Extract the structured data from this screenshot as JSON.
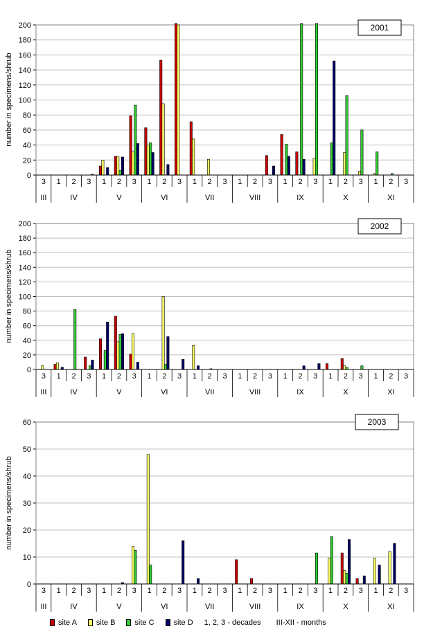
{
  "chart_data": [
    {
      "type": "bar",
      "title": "2001",
      "ylabel": "number in specimens/shrub",
      "ylim": [
        0,
        200
      ],
      "yticks": [
        0,
        20,
        40,
        60,
        80,
        100,
        120,
        140,
        160,
        180,
        200
      ],
      "decade_labels": [
        "3",
        "1",
        "2",
        "3",
        "1",
        "2",
        "3",
        "1",
        "2",
        "3",
        "1",
        "2",
        "3",
        "1",
        "2",
        "3",
        "1",
        "2",
        "3",
        "1",
        "2",
        "3",
        "1",
        "2",
        "3"
      ],
      "months": [
        {
          "label": "III",
          "start": 0,
          "count": 1
        },
        {
          "label": "IV",
          "start": 1,
          "count": 3
        },
        {
          "label": "V",
          "start": 4,
          "count": 3
        },
        {
          "label": "VI",
          "start": 7,
          "count": 3
        },
        {
          "label": "VII",
          "start": 10,
          "count": 3
        },
        {
          "label": "VIII",
          "start": 13,
          "count": 3
        },
        {
          "label": "IX",
          "start": 16,
          "count": 3
        },
        {
          "label": "X",
          "start": 19,
          "count": 3
        },
        {
          "label": "XI",
          "start": 22,
          "count": 3
        }
      ],
      "series": [
        {
          "name": "site A",
          "color": "#cc0000",
          "values": [
            0,
            0,
            0,
            0,
            12,
            25,
            79,
            63,
            153,
            202,
            71,
            0,
            0,
            0,
            0,
            26,
            54,
            31,
            0,
            0,
            0,
            0,
            0,
            0,
            0
          ]
        },
        {
          "name": "site B",
          "color": "#ffff66",
          "values": [
            0,
            0,
            0,
            0,
            20,
            25,
            31,
            40,
            95,
            200,
            48,
            21,
            0,
            0,
            0,
            0,
            0,
            0,
            22,
            0,
            30,
            5,
            2,
            0,
            0
          ]
        },
        {
          "name": "site C",
          "color": "#33cc33",
          "values": [
            0,
            0,
            0,
            0,
            0,
            6,
            93,
            43,
            0,
            0,
            0,
            0,
            0,
            0,
            0,
            0,
            41,
            202,
            202,
            43,
            106,
            60,
            31,
            2,
            0
          ]
        },
        {
          "name": "site D",
          "color": "#000066",
          "values": [
            0,
            0,
            0,
            1,
            10,
            24,
            42,
            30,
            14,
            0,
            0,
            0,
            0,
            0,
            0,
            12,
            25,
            21,
            0,
            152,
            0,
            0,
            0,
            0,
            0
          ]
        }
      ]
    },
    {
      "type": "bar",
      "title": "2002",
      "ylabel": "number in specimens/shrub",
      "ylim": [
        0,
        200
      ],
      "yticks": [
        0,
        20,
        40,
        60,
        80,
        100,
        120,
        140,
        160,
        180,
        200
      ],
      "decade_labels": [
        "3",
        "1",
        "2",
        "3",
        "1",
        "2",
        "3",
        "1",
        "2",
        "3",
        "1",
        "2",
        "3",
        "1",
        "2",
        "3",
        "1",
        "2",
        "3",
        "1",
        "2",
        "3",
        "1",
        "2",
        "3"
      ],
      "months": [
        {
          "label": "III",
          "start": 0,
          "count": 1
        },
        {
          "label": "IV",
          "start": 1,
          "count": 3
        },
        {
          "label": "V",
          "start": 4,
          "count": 3
        },
        {
          "label": "VI",
          "start": 7,
          "count": 3
        },
        {
          "label": "VII",
          "start": 10,
          "count": 3
        },
        {
          "label": "VIII",
          "start": 13,
          "count": 3
        },
        {
          "label": "IX",
          "start": 16,
          "count": 3
        },
        {
          "label": "X",
          "start": 19,
          "count": 3
        },
        {
          "label": "XI",
          "start": 22,
          "count": 3
        }
      ],
      "series": [
        {
          "name": "site A",
          "color": "#cc0000",
          "values": [
            0,
            7,
            0,
            17,
            42,
            73,
            21,
            0,
            0,
            0,
            0,
            0,
            0,
            0,
            0,
            0,
            0,
            0,
            0,
            8,
            15,
            0,
            0,
            0,
            0
          ]
        },
        {
          "name": "site B",
          "color": "#ffff66",
          "values": [
            5,
            9,
            0,
            0,
            0,
            38,
            49,
            0,
            100,
            0,
            33,
            0,
            0,
            0,
            0,
            0,
            0,
            0,
            0,
            0,
            5,
            0,
            0,
            0,
            0
          ]
        },
        {
          "name": "site C",
          "color": "#33cc33",
          "values": [
            0,
            0,
            82,
            5,
            26,
            48,
            0,
            0,
            7,
            0,
            0,
            1,
            0,
            0,
            0,
            0,
            0,
            0,
            0,
            0,
            3,
            5,
            0,
            0,
            0
          ]
        },
        {
          "name": "site D",
          "color": "#000066",
          "values": [
            0,
            3,
            0,
            13,
            65,
            49,
            10,
            0,
            45,
            14,
            5,
            0,
            0,
            0,
            0,
            0,
            0,
            5,
            8,
            0,
            0,
            0,
            0,
            0,
            0
          ]
        }
      ]
    },
    {
      "type": "bar",
      "title": "2003",
      "ylabel": "number in specimens/shrub",
      "ylim": [
        0,
        60
      ],
      "yticks": [
        0,
        10,
        20,
        30,
        40,
        50,
        60
      ],
      "decade_labels": [
        "3",
        "1",
        "2",
        "3",
        "1",
        "2",
        "3",
        "1",
        "2",
        "3",
        "1",
        "2",
        "3",
        "1",
        "2",
        "3",
        "1",
        "2",
        "3",
        "1",
        "2",
        "3",
        "1",
        "2",
        "3"
      ],
      "months": [
        {
          "label": "III",
          "start": 0,
          "count": 1
        },
        {
          "label": "IV",
          "start": 1,
          "count": 3
        },
        {
          "label": "V",
          "start": 4,
          "count": 3
        },
        {
          "label": "VI",
          "start": 7,
          "count": 3
        },
        {
          "label": "VII",
          "start": 10,
          "count": 3
        },
        {
          "label": "VIII",
          "start": 13,
          "count": 3
        },
        {
          "label": "IX",
          "start": 16,
          "count": 3
        },
        {
          "label": "X",
          "start": 19,
          "count": 3
        },
        {
          "label": "XI",
          "start": 22,
          "count": 3
        }
      ],
      "series": [
        {
          "name": "site A",
          "color": "#cc0000",
          "values": [
            0,
            0,
            0,
            0,
            0,
            0,
            0,
            0,
            0,
            0,
            0,
            0,
            0,
            9,
            2,
            0,
            0,
            0,
            0,
            0,
            11.5,
            2,
            0,
            0,
            0
          ]
        },
        {
          "name": "site B",
          "color": "#ffff66",
          "values": [
            0,
            0,
            0,
            0,
            0,
            0,
            14,
            48,
            0,
            0,
            0,
            0,
            0,
            0,
            0,
            0,
            0,
            0,
            0,
            9.5,
            5,
            0,
            9.5,
            12,
            0
          ]
        },
        {
          "name": "site C",
          "color": "#33cc33",
          "values": [
            0,
            0,
            0,
            0,
            0,
            0,
            12.5,
            7,
            0,
            0,
            0,
            0,
            0,
            0,
            0,
            0,
            0,
            0,
            11.5,
            17.5,
            4,
            0,
            0,
            0,
            0
          ]
        },
        {
          "name": "site D",
          "color": "#000066",
          "values": [
            0,
            0,
            0,
            0,
            0,
            0.5,
            0,
            0,
            0,
            16,
            2,
            0,
            0,
            0,
            0,
            0,
            0,
            0,
            0,
            0,
            16.5,
            3,
            7,
            15,
            0
          ]
        }
      ]
    }
  ],
  "legend": {
    "items": [
      {
        "name": "site A",
        "color": "#cc0000"
      },
      {
        "name": "site B",
        "color": "#ffff66"
      },
      {
        "name": "site C",
        "color": "#33cc33"
      },
      {
        "name": "site D",
        "color": "#000066"
      }
    ],
    "decades_note": "1, 2, 3 - decades",
    "months_note": "III-XII - months"
  }
}
